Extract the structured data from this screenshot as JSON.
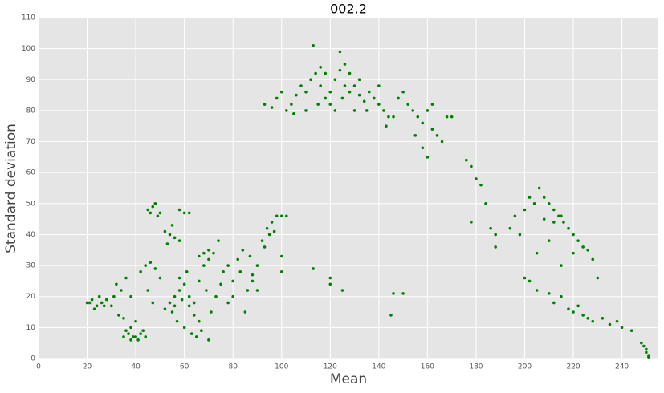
{
  "chart_data": {
    "type": "scatter",
    "title": "002.2",
    "x_label": "Mean",
    "y_label": "Standard deviation",
    "color": "#008000",
    "grid": true,
    "x": [
      20,
      22,
      24,
      26,
      28,
      23,
      25,
      30,
      21,
      27,
      35,
      37,
      38,
      40,
      42,
      36,
      39,
      41,
      43,
      44,
      38,
      40,
      32,
      34,
      36,
      38,
      42,
      44,
      46,
      48,
      45,
      50,
      33,
      35,
      31,
      47,
      45,
      47,
      48,
      50,
      49,
      46,
      52,
      54,
      56,
      55,
      58,
      53,
      58,
      60,
      62,
      52,
      54,
      56,
      58,
      60,
      62,
      64,
      66,
      68,
      70,
      72,
      55,
      57,
      60,
      63,
      65,
      67,
      70,
      58,
      61,
      64,
      66,
      69,
      71,
      73,
      75,
      62,
      59,
      56,
      68,
      70,
      66,
      76,
      78,
      80,
      82,
      84,
      86,
      88,
      90,
      92,
      94,
      96,
      98,
      100,
      102,
      78,
      80,
      85,
      88,
      74,
      90,
      83,
      87,
      95,
      93,
      97,
      100,
      100,
      113,
      120,
      120,
      125,
      145,
      146,
      150,
      93,
      96,
      98,
      100,
      102,
      104,
      106,
      108,
      110,
      112,
      114,
      116,
      118,
      120,
      122,
      124,
      126,
      128,
      130,
      132,
      134,
      136,
      138,
      140,
      142,
      144,
      113,
      124,
      110,
      115,
      120,
      125,
      130,
      135,
      118,
      128,
      122,
      126,
      132,
      116,
      105,
      140,
      143,
      146,
      148,
      150,
      152,
      154,
      156,
      158,
      160,
      162,
      164,
      166,
      160,
      168,
      170,
      155,
      162,
      158,
      176,
      178,
      180,
      182,
      178,
      184,
      186,
      188,
      188,
      194,
      196,
      198,
      200,
      202,
      204,
      206,
      208,
      210,
      212,
      214,
      216,
      218,
      220,
      222,
      224,
      226,
      228,
      215,
      212,
      208,
      210,
      215,
      220,
      205,
      200,
      230,
      202,
      205,
      210,
      212,
      215,
      218,
      220,
      222,
      224,
      226,
      228,
      232,
      235,
      238,
      240,
      244,
      248,
      249,
      250,
      250,
      251,
      251
    ],
    "values": [
      18,
      19,
      17,
      18,
      19,
      16,
      20,
      17,
      18,
      17,
      7,
      8,
      6,
      7,
      8,
      9,
      7,
      6,
      9,
      7,
      10,
      12,
      24,
      22,
      26,
      20,
      28,
      30,
      31,
      29,
      22,
      26,
      14,
      13,
      20,
      18,
      48,
      49,
      50,
      47,
      46,
      47,
      41,
      40,
      39,
      43,
      38,
      37,
      48,
      47,
      47,
      16,
      18,
      20,
      22,
      24,
      20,
      18,
      25,
      30,
      32,
      34,
      15,
      12,
      10,
      8,
      7,
      9,
      6,
      26,
      28,
      14,
      12,
      22,
      15,
      20,
      24,
      17,
      19,
      17,
      34,
      35,
      33,
      28,
      30,
      25,
      32,
      35,
      22,
      27,
      30,
      38,
      42,
      44,
      46,
      46,
      46,
      18,
      20,
      15,
      25,
      38,
      22,
      28,
      33,
      40,
      36,
      41,
      28,
      33,
      29,
      26,
      24,
      22,
      14,
      21,
      21,
      82,
      81,
      84,
      86,
      80,
      82,
      85,
      88,
      86,
      90,
      92,
      88,
      84,
      86,
      90,
      93,
      95,
      92,
      88,
      85,
      83,
      86,
      84,
      82,
      80,
      78,
      101,
      99,
      80,
      82,
      82,
      84,
      80,
      80,
      92,
      86,
      80,
      88,
      90,
      94,
      79,
      88,
      75,
      78,
      84,
      86,
      82,
      80,
      78,
      76,
      80,
      74,
      72,
      70,
      65,
      78,
      78,
      72,
      82,
      68,
      64,
      62,
      58,
      56,
      44,
      50,
      42,
      40,
      36,
      42,
      46,
      40,
      48,
      52,
      50,
      55,
      52,
      50,
      48,
      46,
      44,
      42,
      40,
      38,
      36,
      35,
      32,
      46,
      44,
      45,
      38,
      30,
      34,
      34,
      26,
      26,
      25,
      22,
      21,
      18,
      20,
      16,
      15,
      17,
      14,
      13,
      12,
      13,
      11,
      12,
      10,
      9,
      5,
      4,
      3,
      2,
      1,
      0.5
    ],
    "xlim": [
      0,
      255
    ],
    "ylim": [
      0,
      110
    ],
    "xticks": [
      0,
      20,
      40,
      60,
      80,
      100,
      120,
      140,
      160,
      180,
      200,
      220,
      240
    ],
    "yticks": [
      0,
      10,
      20,
      30,
      40,
      50,
      60,
      70,
      80,
      90,
      100,
      110
    ]
  }
}
